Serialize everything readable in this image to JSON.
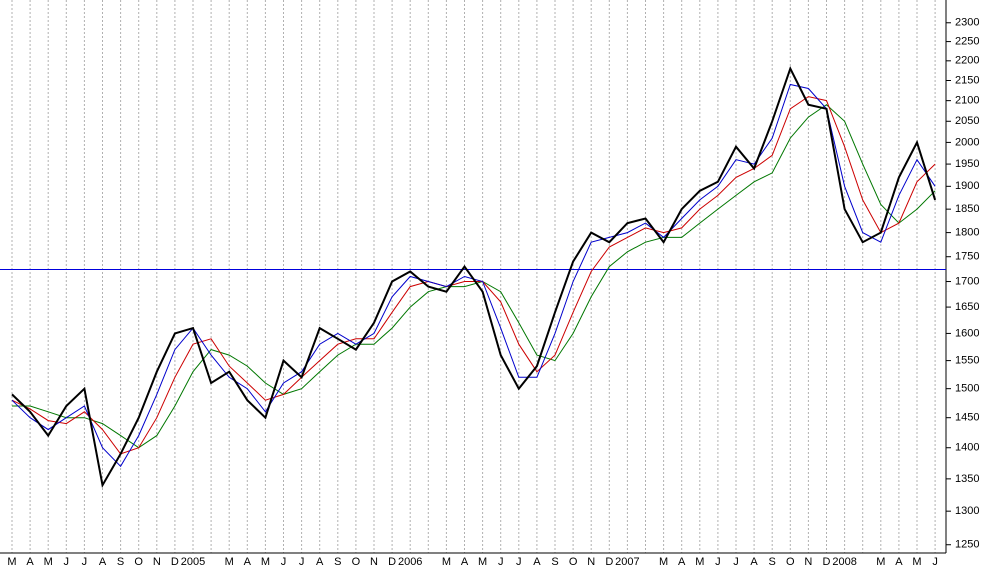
{
  "chart_data": {
    "type": "line",
    "categories": [
      "M",
      "A",
      "M",
      "J",
      "J",
      "A",
      "S",
      "O",
      "N",
      "D",
      "2005",
      null,
      "M",
      "A",
      "M",
      "J",
      "J",
      "A",
      "S",
      "O",
      "N",
      "D",
      "2006",
      null,
      "M",
      "A",
      "M",
      "J",
      "J",
      "A",
      "S",
      "O",
      "N",
      "D",
      "2007",
      null,
      "M",
      "A",
      "M",
      "J",
      "J",
      "A",
      "S",
      "O",
      "N",
      "D",
      "2008",
      null,
      "M",
      "A",
      "M",
      "J"
    ],
    "series": [
      {
        "color": "#000000",
        "values": [
          1490,
          1460,
          1420,
          1470,
          1500,
          1340,
          1390,
          1450,
          1530,
          1600,
          1610,
          1510,
          1530,
          1480,
          1450,
          1550,
          1520,
          1610,
          1590,
          1570,
          1620,
          1700,
          1720,
          1690,
          1680,
          1730,
          1680,
          1560,
          1500,
          1540,
          1640,
          1740,
          1800,
          1780,
          1820,
          1830,
          1780,
          1850,
          1890,
          1910,
          1990,
          1940,
          2050,
          2180,
          2090,
          2080,
          1850,
          1780,
          1800,
          1920,
          2000,
          1870
        ]
      },
      {
        "color": "#0000cc",
        "values": [
          1480,
          1450,
          1430,
          1450,
          1470,
          1400,
          1370,
          1420,
          1490,
          1570,
          1610,
          1560,
          1520,
          1500,
          1460,
          1510,
          1530,
          1580,
          1600,
          1580,
          1600,
          1670,
          1710,
          1700,
          1690,
          1710,
          1700,
          1610,
          1520,
          1520,
          1600,
          1700,
          1780,
          1790,
          1800,
          1820,
          1790,
          1830,
          1870,
          1900,
          1960,
          1950,
          2010,
          2140,
          2130,
          2080,
          1900,
          1800,
          1780,
          1880,
          1960,
          1900
        ]
      },
      {
        "color": "#cc0000",
        "values": [
          1480,
          1465,
          1445,
          1440,
          1460,
          1430,
          1390,
          1400,
          1450,
          1520,
          1580,
          1590,
          1540,
          1510,
          1480,
          1490,
          1520,
          1550,
          1580,
          1590,
          1590,
          1640,
          1690,
          1700,
          1690,
          1700,
          1700,
          1660,
          1580,
          1530,
          1560,
          1640,
          1720,
          1770,
          1790,
          1810,
          1800,
          1810,
          1850,
          1880,
          1920,
          1940,
          1970,
          2080,
          2110,
          2100,
          1990,
          1870,
          1800,
          1820,
          1910,
          1950
        ]
      },
      {
        "color": "#007700",
        "values": [
          1470,
          1470,
          1460,
          1450,
          1450,
          1440,
          1420,
          1400,
          1420,
          1470,
          1530,
          1570,
          1560,
          1540,
          1510,
          1490,
          1500,
          1530,
          1560,
          1580,
          1580,
          1610,
          1650,
          1680,
          1690,
          1690,
          1700,
          1680,
          1620,
          1560,
          1550,
          1600,
          1670,
          1730,
          1760,
          1780,
          1790,
          1790,
          1820,
          1850,
          1880,
          1910,
          1930,
          2010,
          2060,
          2090,
          2050,
          1950,
          1860,
          1820,
          1850,
          1890
        ]
      }
    ],
    "reference_line": {
      "value": 1724,
      "color": "#0000dd"
    },
    "ylim": [
      1238,
      2362
    ],
    "yticks": [
      1250,
      1300,
      1350,
      1400,
      1450,
      1500,
      1550,
      1600,
      1650,
      1700,
      1750,
      1800,
      1850,
      1900,
      1950,
      2000,
      2050,
      2100,
      2150,
      2200,
      2250,
      2300
    ],
    "log_scale": true,
    "grid": true
  }
}
